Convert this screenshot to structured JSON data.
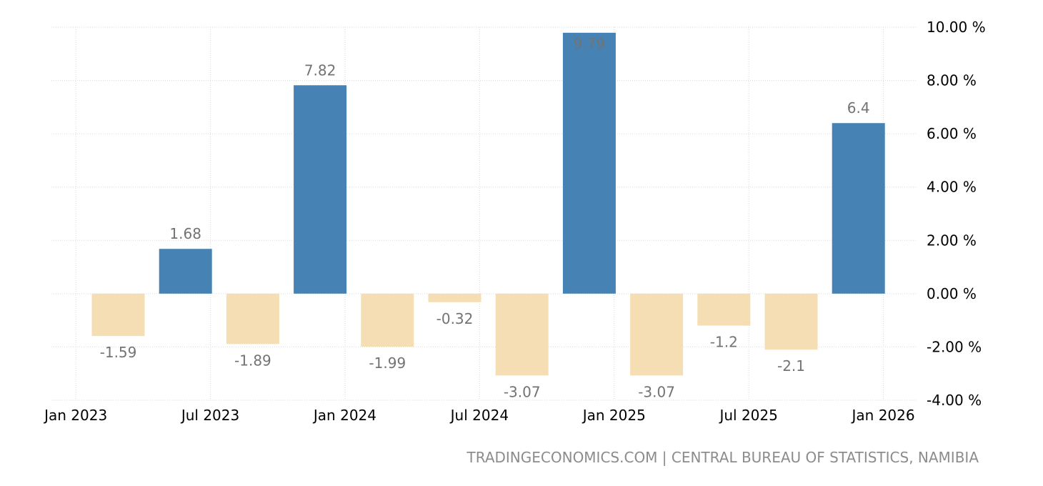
{
  "source": "TRADINGECONOMICS.COM | CENTRAL BUREAU OF STATISTICS, NAMIBIA",
  "colors": {
    "positive": "#4682b4",
    "negative": "#f5deb3"
  },
  "chart_data": {
    "type": "bar",
    "title": "",
    "xlabel": "",
    "ylabel": "",
    "categories": [
      "2023-Q1",
      "2023-Q2",
      "2023-Q3",
      "2023-Q4",
      "2024-Q1",
      "2024-Q2",
      "2024-Q3",
      "2024-Q4",
      "2025-Q1",
      "2025-Q2",
      "2025-Q3",
      "2025-Q4"
    ],
    "values": [
      -1.59,
      1.68,
      -1.89,
      7.82,
      -1.99,
      -0.32,
      -3.07,
      9.79,
      -3.07,
      -1.2,
      -2.1,
      6.4
    ],
    "value_labels": [
      "-1.59",
      "1.68",
      "-1.89",
      "7.82",
      "-1.99",
      "-0.32",
      "-3.07",
      "9.79",
      "-3.07",
      "-1.2",
      "-2.1",
      "6.4"
    ],
    "ylim": [
      -4,
      10
    ],
    "y_ticks": [
      10,
      8,
      6,
      4,
      2,
      0,
      -2,
      -4
    ],
    "y_tick_labels": [
      "10.00 %",
      "8.00 %",
      "6.00 %",
      "4.00 %",
      "2.00 %",
      "0.00 %",
      "-2.00 %",
      "-4.00 %"
    ],
    "x_tick_labels": [
      "Jan 2023",
      "Jul 2023",
      "Jan 2024",
      "Jul 2024",
      "Jan 2025",
      "Jul 2025",
      "Jan 2026"
    ],
    "y_axis_position": "right",
    "grid": true,
    "legend": "none"
  }
}
